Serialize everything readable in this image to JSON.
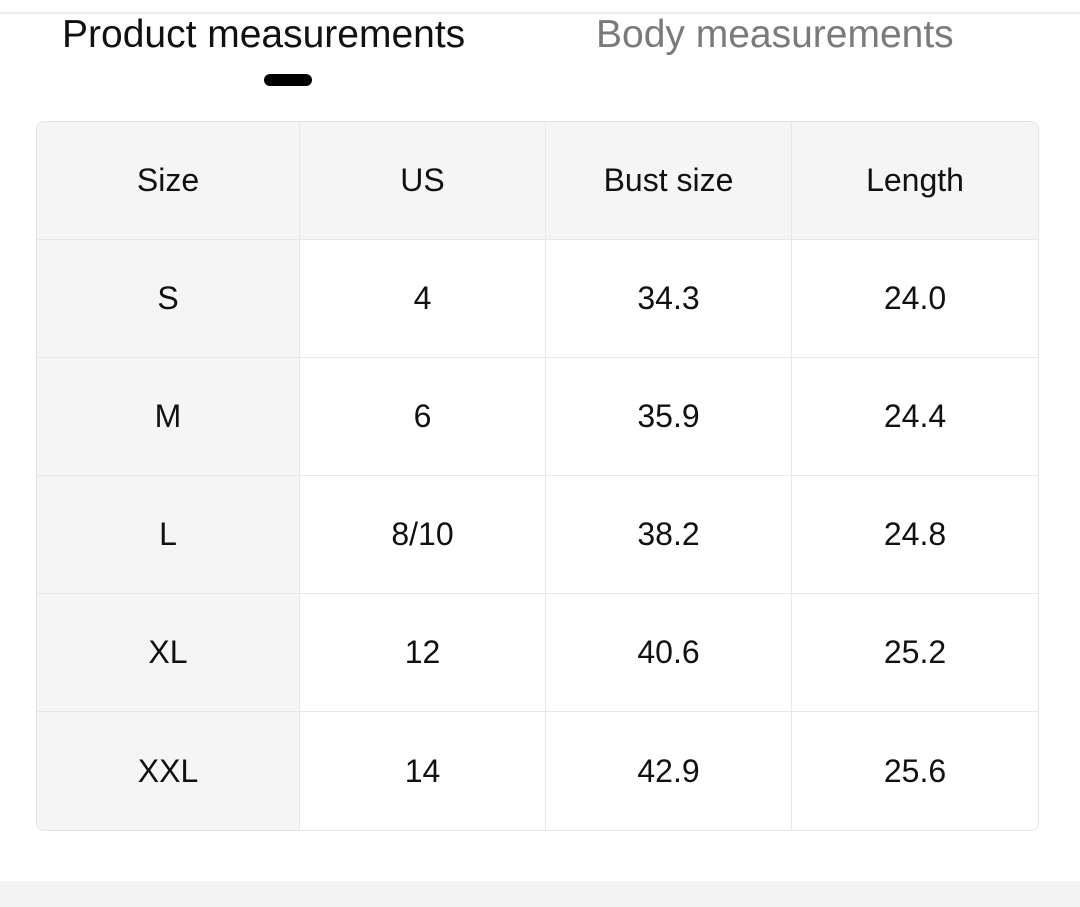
{
  "tabs": [
    {
      "label": "Product measurements",
      "active": true
    },
    {
      "label": "Body measurements",
      "active": false
    }
  ],
  "table": {
    "headers": [
      "Size",
      "US",
      "Bust size",
      "Length"
    ],
    "rows": [
      [
        "S",
        "4",
        "34.3",
        "24.0"
      ],
      [
        "M",
        "6",
        "35.9",
        "24.4"
      ],
      [
        "L",
        "8/10",
        "38.2",
        "24.8"
      ],
      [
        "XL",
        "12",
        "40.6",
        "25.2"
      ],
      [
        "XXL",
        "14",
        "42.9",
        "25.6"
      ]
    ]
  }
}
